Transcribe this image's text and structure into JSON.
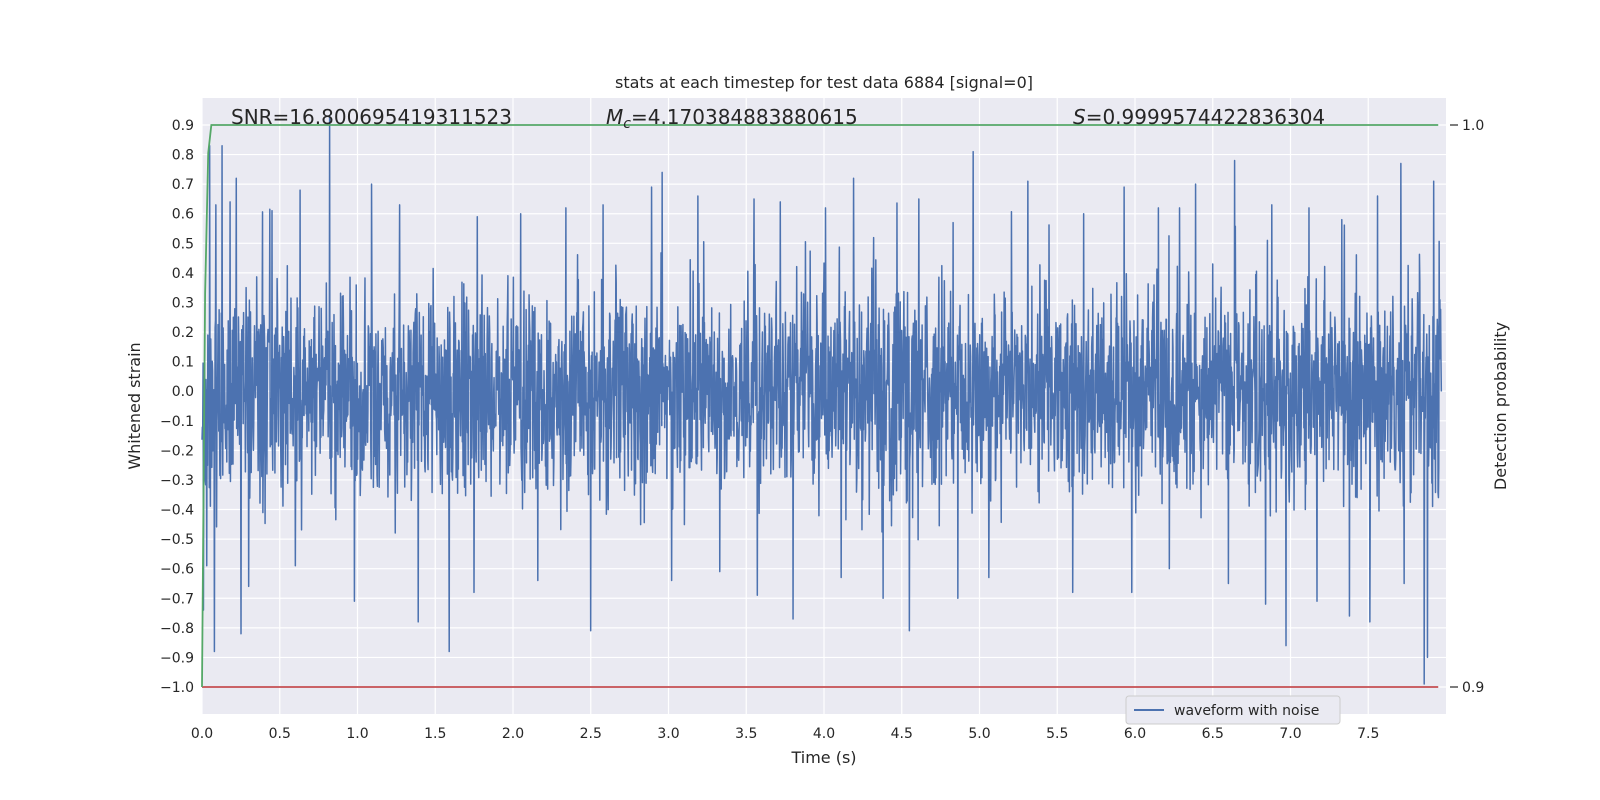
{
  "chart_data": {
    "type": "line",
    "title": "stats at each timestep for test data 6884 [signal=0]",
    "xlabel": "Time (s)",
    "ylabel": "Whitened strain",
    "y2label": "Detection probability",
    "xlim": [
      0.0,
      8.0
    ],
    "ylim": [
      -1.09,
      1.0
    ],
    "y2lim": [
      0.9,
      1.0
    ],
    "x_ticks": [
      "0.0",
      "0.5",
      "1.0",
      "1.5",
      "2.0",
      "2.5",
      "3.0",
      "3.5",
      "4.0",
      "4.5",
      "5.0",
      "5.5",
      "6.0",
      "6.5",
      "7.0",
      "7.5"
    ],
    "y_ticks": [
      "0.9",
      "0.8",
      "0.7",
      "0.6",
      "0.5",
      "0.4",
      "0.3",
      "0.2",
      "0.1",
      "0.0",
      "-0.1",
      "-0.2",
      "-0.3",
      "-0.4",
      "-0.5",
      "-0.6",
      "-0.7",
      "-0.8",
      "-0.9",
      "-1.0"
    ],
    "y2_ticks": [
      "1.0",
      "0.9"
    ],
    "grid": true,
    "legend_position": "lower-right",
    "annotations": {
      "snr": "SNR=16.800695419311523",
      "mc_prefix": "M",
      "mc_sub": "c",
      "mc_value": "=4.170384883880615",
      "s_prefix": "S",
      "s_value": "=0.9999574422836304"
    },
    "series": [
      {
        "name": "waveform with noise",
        "color": "#4c72b0",
        "description": "dense noise time series, approx. -0.4..0.4 bulk with spikes up to 0.9 and down to -1.0"
      },
      {
        "color": "#55a868",
        "axis": "right",
        "x": [
          0.0,
          0.02,
          0.04,
          0.06,
          0.08,
          7.95
        ],
        "y": [
          0.9,
          0.97,
          0.995,
          1.0,
          1.0,
          1.0
        ]
      },
      {
        "color": "#c44e52",
        "axis": "left",
        "x": [
          0.0,
          7.95
        ],
        "y": [
          -1.0,
          -1.0
        ]
      }
    ],
    "spikes_up": [
      [
        0.05,
        0.83
      ],
      [
        0.09,
        0.63
      ],
      [
        0.13,
        0.83
      ],
      [
        0.18,
        0.64
      ],
      [
        0.22,
        0.72
      ],
      [
        0.45,
        0.61
      ],
      [
        0.63,
        0.68
      ],
      [
        0.82,
        0.93
      ],
      [
        1.09,
        0.7
      ],
      [
        1.27,
        0.63
      ],
      [
        1.59,
        0.64
      ],
      [
        1.77,
        0.59
      ],
      [
        2.05,
        0.6
      ],
      [
        2.34,
        0.62
      ],
      [
        2.58,
        0.63
      ],
      [
        2.89,
        0.69
      ],
      [
        2.96,
        0.74
      ],
      [
        3.19,
        0.66
      ],
      [
        3.55,
        0.65
      ],
      [
        3.72,
        0.64
      ],
      [
        4.01,
        0.62
      ],
      [
        4.19,
        0.72
      ],
      [
        4.61,
        0.65
      ],
      [
        4.83,
        0.57
      ],
      [
        4.96,
        0.81
      ],
      [
        5.31,
        0.71
      ],
      [
        5.67,
        0.6
      ],
      [
        5.93,
        0.69
      ],
      [
        6.15,
        0.62
      ],
      [
        6.39,
        0.7
      ],
      [
        6.64,
        0.78
      ],
      [
        6.88,
        0.63
      ],
      [
        7.12,
        0.62
      ],
      [
        7.33,
        0.58
      ],
      [
        7.56,
        0.66
      ],
      [
        7.71,
        0.77
      ],
      [
        7.86,
        0.89
      ],
      [
        7.92,
        0.71
      ]
    ],
    "spikes_down": [
      [
        0.01,
        -0.74
      ],
      [
        0.03,
        -0.59
      ],
      [
        0.08,
        -0.88
      ],
      [
        0.25,
        -0.82
      ],
      [
        0.3,
        -0.66
      ],
      [
        0.6,
        -0.59
      ],
      [
        0.98,
        -0.71
      ],
      [
        1.39,
        -0.78
      ],
      [
        1.59,
        -0.88
      ],
      [
        1.75,
        -0.68
      ],
      [
        2.16,
        -0.64
      ],
      [
        2.5,
        -0.81
      ],
      [
        3.02,
        -0.64
      ],
      [
        3.33,
        -0.61
      ],
      [
        3.57,
        -0.69
      ],
      [
        3.8,
        -0.77
      ],
      [
        4.11,
        -0.63
      ],
      [
        4.38,
        -0.7
      ],
      [
        4.55,
        -0.81
      ],
      [
        4.86,
        -0.7
      ],
      [
        5.06,
        -0.63
      ],
      [
        5.6,
        -0.68
      ],
      [
        5.98,
        -0.68
      ],
      [
        6.22,
        -0.6
      ],
      [
        6.6,
        -0.65
      ],
      [
        6.84,
        -0.72
      ],
      [
        6.97,
        -0.86
      ],
      [
        7.17,
        -0.71
      ],
      [
        7.38,
        -0.76
      ],
      [
        7.51,
        -0.78
      ],
      [
        7.73,
        -0.65
      ],
      [
        7.86,
        -0.99
      ],
      [
        7.88,
        -0.9
      ]
    ]
  }
}
